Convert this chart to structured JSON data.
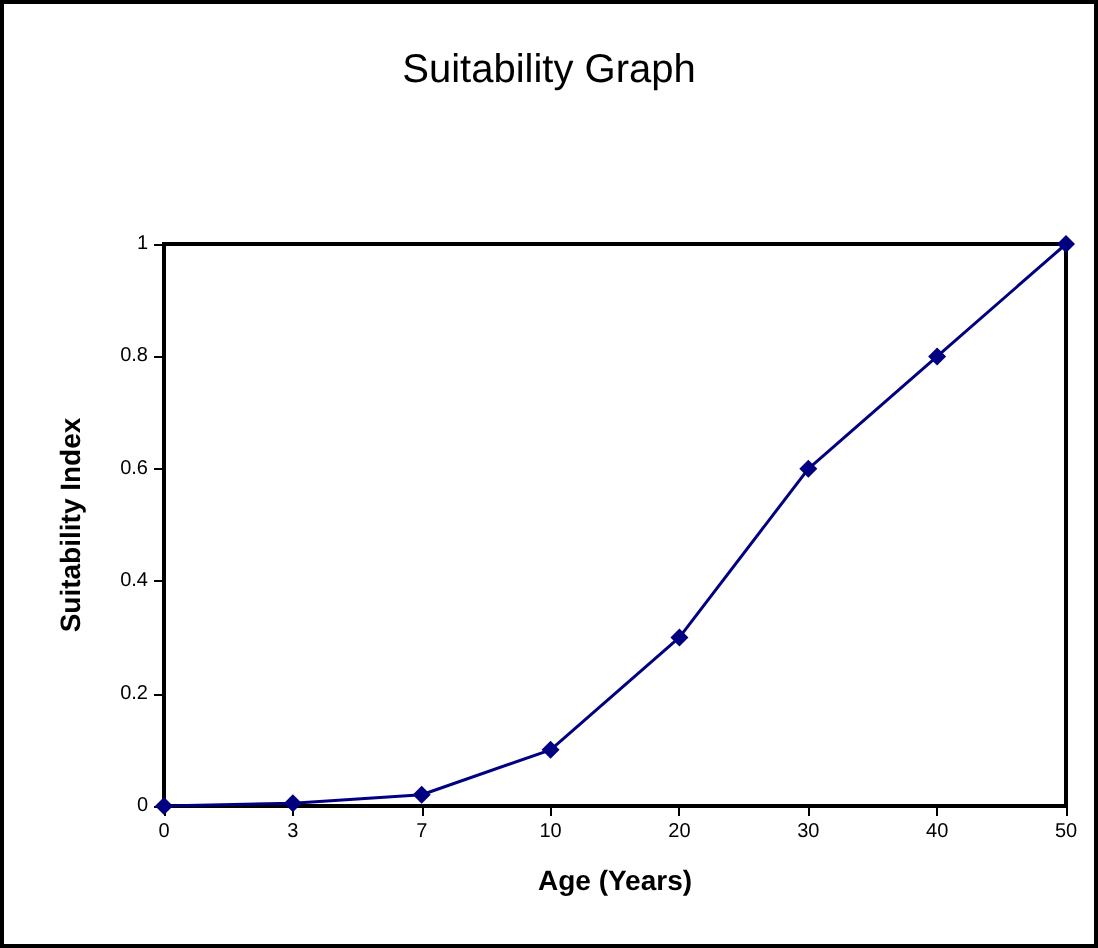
{
  "chart_data": {
    "type": "line",
    "title": "Suitability Graph",
    "xlabel": "Age (Years)",
    "ylabel": "Suitability Index",
    "categories": [
      "0",
      "3",
      "7",
      "10",
      "20",
      "30",
      "40",
      "50"
    ],
    "series": [
      {
        "color": "#000080",
        "values": [
          0,
          0.005,
          0.02,
          0.1,
          0.3,
          0.6,
          0.8,
          1
        ]
      }
    ],
    "ylim": [
      0,
      1
    ],
    "yticks": [
      0,
      0.2,
      0.4,
      0.6,
      0.8,
      1
    ],
    "marker": "diamond",
    "line_style": "solid"
  }
}
